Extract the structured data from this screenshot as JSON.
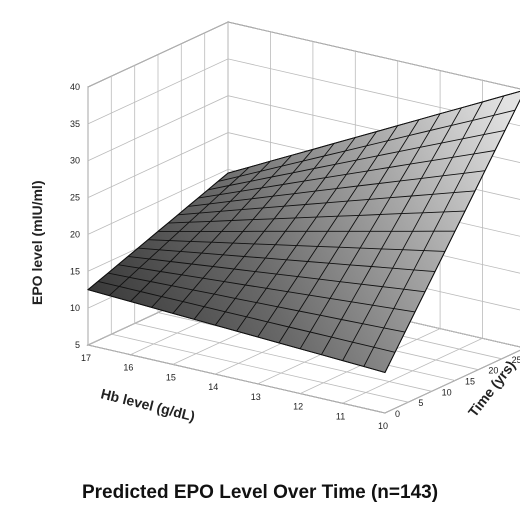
{
  "chart_data": {
    "type": "surface",
    "title": "Predicted EPO Level Over Time (n=143)",
    "zlabel": "EPO level (mIU/ml)",
    "xlabel": "Hb  level (g/dL)",
    "ylabel": "Time (yrs)",
    "z_ticks": [
      "5",
      "10",
      "15",
      "20",
      "25",
      "30",
      "35",
      "40"
    ],
    "hb_ticks": [
      "17",
      "16",
      "15",
      "14",
      "13",
      "12",
      "11",
      "10"
    ],
    "time_ticks": [
      "0",
      "5",
      "10",
      "15",
      "20",
      "25",
      "30"
    ],
    "zlim": [
      5,
      40
    ],
    "hb_range": [
      17,
      10
    ],
    "time_range": [
      0,
      30
    ],
    "corners": [
      {
        "hb": 17,
        "time": 0,
        "epo": 12.5
      },
      {
        "hb": 10,
        "time": 0,
        "epo": 10.5
      },
      {
        "hb": 17,
        "time": 30,
        "epo": 19.5
      },
      {
        "hb": 10,
        "time": 30,
        "epo": 40
      }
    ],
    "grid": true
  }
}
